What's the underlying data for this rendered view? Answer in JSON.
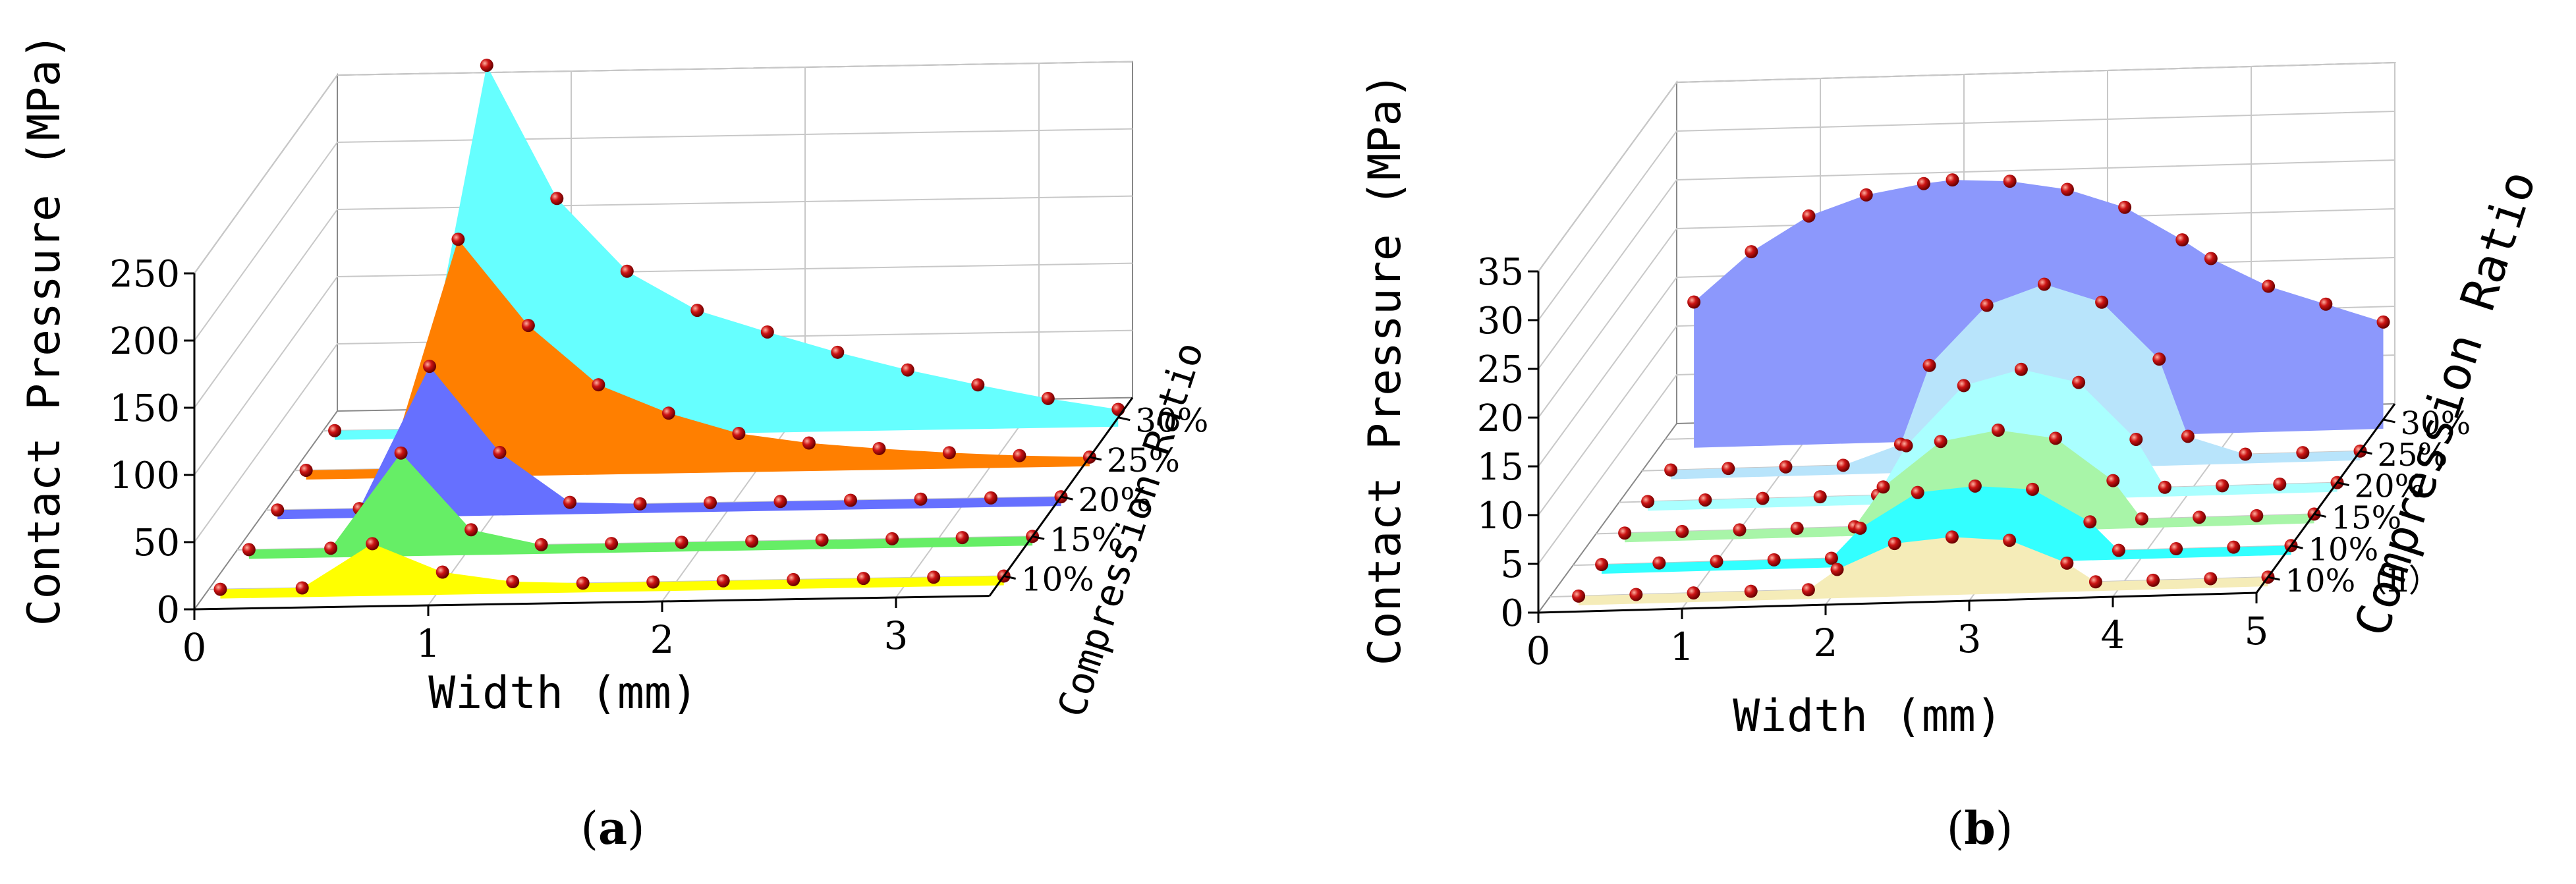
{
  "captions": {
    "a_letter": "a",
    "b_letter": "b",
    "open": "(",
    "close": ")"
  },
  "colors": {
    "marker": "#cc1414",
    "grid": "#c8c8c8",
    "axis": "#000000"
  },
  "chart_data": [
    {
      "id": "a",
      "type": "area",
      "title": "",
      "xlabel": "Width (mm)",
      "ylabel": "Contact Pressure (MPa)",
      "zlabel": "Compression Ratio",
      "xlim": [
        0,
        3.4
      ],
      "ylim": [
        0,
        250
      ],
      "xticks": [
        "0",
        "1",
        "2",
        "3"
      ],
      "yticks": [
        "0",
        "50",
        "100",
        "150",
        "200",
        "250"
      ],
      "series": [
        {
          "name": "10%",
          "color": "#ffff00",
          "x": [
            0.05,
            0.4,
            0.7,
            1.0,
            1.3,
            1.6,
            1.9,
            2.2,
            2.5,
            2.8,
            3.1,
            3.4
          ],
          "y": [
            0,
            0,
            32,
            10,
            2,
            0,
            0,
            0,
            0,
            0,
            0,
            0
          ]
        },
        {
          "name": "15%",
          "color": "#66ee66",
          "x": [
            0.05,
            0.4,
            0.7,
            1.0,
            1.3,
            1.6,
            1.9,
            2.2,
            2.5,
            2.8,
            3.1,
            3.4
          ],
          "y": [
            0,
            0,
            70,
            12,
            0,
            0,
            0,
            0,
            0,
            0,
            0,
            0
          ]
        },
        {
          "name": "20%",
          "color": "#6670ff",
          "x": [
            0.05,
            0.4,
            0.7,
            1.0,
            1.3,
            1.6,
            1.9,
            2.2,
            2.5,
            2.8,
            3.1,
            3.4
          ],
          "y": [
            0,
            0,
            105,
            40,
            2,
            0,
            0,
            0,
            0,
            0,
            0,
            0
          ]
        },
        {
          "name": "25%",
          "color": "#ff7f00",
          "x": [
            0.05,
            0.4,
            0.7,
            1.0,
            1.3,
            1.6,
            1.9,
            2.2,
            2.5,
            2.8,
            3.1,
            3.4
          ],
          "y": [
            0,
            0,
            170,
            105,
            60,
            38,
            22,
            14,
            9,
            5,
            2,
            0
          ]
        },
        {
          "name": "30%",
          "color": "#66ffff",
          "x": [
            0.05,
            0.4,
            0.7,
            1.0,
            1.3,
            1.6,
            1.9,
            2.2,
            2.5,
            2.8,
            3.1,
            3.4
          ],
          "y": [
            0,
            0,
            270,
            170,
            115,
            85,
            68,
            52,
            38,
            26,
            15,
            6
          ]
        }
      ]
    },
    {
      "id": "b",
      "type": "area",
      "title": "",
      "xlabel": "Width (mm)",
      "ylabel": "Contact Pressure (MPa)",
      "zlabel": "Compression Ratio",
      "xlim": [
        0,
        5
      ],
      "ylim": [
        0,
        35
      ],
      "xticks": [
        "0",
        "1",
        "2",
        "3",
        "4",
        "5"
      ],
      "yticks": [
        "0",
        "5",
        "10",
        "15",
        "20",
        "25",
        "30",
        "35"
      ],
      "series": [
        {
          "name": "10%（Ⅱ）",
          "color": "#f5ecb8",
          "x": [
            0.2,
            0.6,
            1.0,
            1.4,
            1.8,
            2.0,
            2.4,
            2.8,
            3.2,
            3.6,
            3.8,
            4.2,
            4.6,
            5.0
          ],
          "y": [
            0,
            0,
            0,
            0,
            0,
            2,
            4.5,
            5,
            4.5,
            2,
            0,
            0,
            0,
            0
          ]
        },
        {
          "name": "10%",
          "color": "#33ffff",
          "x": [
            0.2,
            0.6,
            1.0,
            1.4,
            1.8,
            2.0,
            2.4,
            2.8,
            3.2,
            3.6,
            3.8,
            4.2,
            4.6,
            5.0
          ],
          "y": [
            0,
            0,
            0,
            0,
            0,
            3,
            6.5,
            7,
            6.5,
            3,
            0,
            0,
            0,
            0
          ]
        },
        {
          "name": "15%",
          "color": "#a8f5a8",
          "x": [
            0.2,
            0.6,
            1.0,
            1.4,
            1.8,
            2.0,
            2.4,
            2.8,
            3.2,
            3.6,
            3.8,
            4.2,
            4.6,
            5.0
          ],
          "y": [
            0,
            0,
            0,
            0,
            0,
            4,
            8.5,
            9.5,
            8.5,
            4,
            0,
            0,
            0,
            0
          ]
        },
        {
          "name": "20%",
          "color": "#aaffff",
          "x": [
            0.2,
            0.6,
            1.0,
            1.4,
            1.8,
            2.0,
            2.4,
            2.8,
            3.2,
            3.6,
            3.8,
            4.2,
            4.6,
            5.0
          ],
          "y": [
            0,
            0,
            0,
            0,
            0,
            5,
            11,
            12.5,
            11,
            5,
            0,
            0,
            0,
            0
          ]
        },
        {
          "name": "25%",
          "color": "#b8e4fb",
          "x": [
            0.2,
            0.6,
            1.0,
            1.4,
            1.8,
            2.0,
            2.4,
            2.8,
            3.2,
            3.6,
            3.8,
            4.2,
            4.6,
            5.0
          ],
          "y": [
            0,
            0,
            0,
            0,
            2,
            10,
            16,
            18,
            16,
            10,
            2,
            0,
            0,
            0
          ]
        },
        {
          "name": "30%",
          "color": "#8c98fc",
          "x": [
            0.2,
            0.6,
            1.0,
            1.4,
            1.8,
            2.0,
            2.4,
            2.8,
            3.2,
            3.6,
            3.8,
            4.2,
            4.6,
            5.0
          ],
          "y": [
            14,
            19,
            22.5,
            24.5,
            25.5,
            25.8,
            25.5,
            24.5,
            22.5,
            19,
            17,
            14,
            12,
            10
          ]
        }
      ]
    }
  ]
}
